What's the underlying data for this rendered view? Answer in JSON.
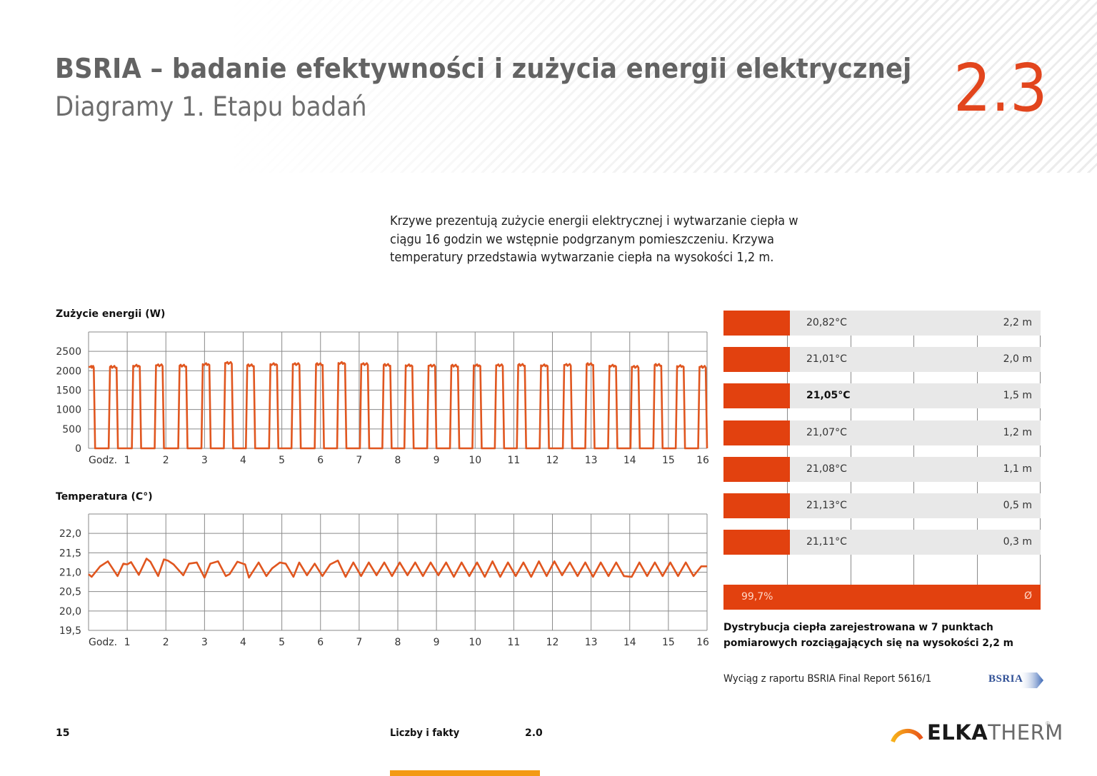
{
  "header": {
    "title": "BSRIA – badanie efektywności  i zużycia energii elektrycznej",
    "subtitle": "Diagramy 1. Etapu badań",
    "section_number": "2.3"
  },
  "intro_text": "Krzywe prezentują zużycie energii elektrycznej i wytwarzanie ciepła w ciągu 16 godzin we wstępnie podgrzanym pomieszczeniu. Krzywa temperatury przedstawia wytwarzanie ciepła na wysokości 1,2 m.",
  "colors": {
    "accent": "#e2451d",
    "line": "#e0561f",
    "bar": "#e2410f",
    "row_bg": "#e8e8e8",
    "grid": "#8a8a8a",
    "title_gray": "#636363",
    "footer_tab": "#f39a14"
  },
  "chart_data": [
    {
      "type": "line",
      "title": "Zużycie energii (W)",
      "xlabel": "Godz.",
      "ylabel": "W",
      "x_ticks": [
        "1",
        "2",
        "3",
        "4",
        "5",
        "6",
        "7",
        "8",
        "9",
        "10",
        "11",
        "12",
        "13",
        "14",
        "15",
        "16"
      ],
      "y_ticks": [
        "0",
        "500",
        "1000",
        "1500",
        "2000",
        "2500"
      ],
      "ylim": [
        0,
        3000
      ],
      "xlim": [
        0,
        16
      ],
      "grid": true,
      "description": "On/off heater cycling: ~31 rectangular pulses of ~2100–2200 W alternating with 0 W over 16 hours",
      "series": [
        {
          "name": "Zużycie energii",
          "pulses": [
            {
              "on": 0.0,
              "off": 0.17,
              "level": 2100
            },
            {
              "on": 0.52,
              "off": 0.76,
              "level": 2100
            },
            {
              "on": 1.12,
              "off": 1.36,
              "level": 2130
            },
            {
              "on": 1.71,
              "off": 1.95,
              "level": 2140
            },
            {
              "on": 2.32,
              "off": 2.56,
              "level": 2130
            },
            {
              "on": 2.92,
              "off": 3.16,
              "level": 2170
            },
            {
              "on": 3.5,
              "off": 3.74,
              "level": 2200
            },
            {
              "on": 4.07,
              "off": 4.31,
              "level": 2140
            },
            {
              "on": 4.67,
              "off": 4.91,
              "level": 2170
            },
            {
              "on": 5.25,
              "off": 5.49,
              "level": 2170
            },
            {
              "on": 5.85,
              "off": 6.09,
              "level": 2170
            },
            {
              "on": 6.43,
              "off": 6.67,
              "level": 2200
            },
            {
              "on": 7.02,
              "off": 7.26,
              "level": 2170
            },
            {
              "on": 7.6,
              "off": 7.84,
              "level": 2150
            },
            {
              "on": 8.17,
              "off": 8.41,
              "level": 2140
            },
            {
              "on": 8.76,
              "off": 9.0,
              "level": 2130
            },
            {
              "on": 9.35,
              "off": 9.59,
              "level": 2130
            },
            {
              "on": 9.93,
              "off": 10.17,
              "level": 2140
            },
            {
              "on": 10.51,
              "off": 10.75,
              "level": 2140
            },
            {
              "on": 11.08,
              "off": 11.32,
              "level": 2150
            },
            {
              "on": 11.67,
              "off": 11.91,
              "level": 2140
            },
            {
              "on": 12.27,
              "off": 12.51,
              "level": 2150
            },
            {
              "on": 12.85,
              "off": 13.09,
              "level": 2170
            },
            {
              "on": 13.44,
              "off": 13.68,
              "level": 2130
            },
            {
              "on": 14.02,
              "off": 14.26,
              "level": 2100
            },
            {
              "on": 14.61,
              "off": 14.85,
              "level": 2150
            },
            {
              "on": 15.19,
              "off": 15.43,
              "level": 2120
            },
            {
              "on": 15.77,
              "off": 16.0,
              "level": 2100
            }
          ]
        }
      ]
    },
    {
      "type": "line",
      "title": "Temperatura (C°)",
      "xlabel": "Godz.",
      "ylabel": "°C",
      "x_ticks": [
        "1",
        "2",
        "3",
        "4",
        "5",
        "6",
        "7",
        "8",
        "9",
        "10",
        "11",
        "12",
        "13",
        "14",
        "15",
        "16"
      ],
      "y_ticks": [
        "19,5",
        "20,0",
        "20,5",
        "21,0",
        "21,5",
        "22,0"
      ],
      "ylim": [
        19.5,
        22.5
      ],
      "xlim": [
        0,
        16
      ],
      "grid": true,
      "description": "Temperature oscillating around 21,0 °C between ~20,88 and ~21,33 °C with ~28 cycles",
      "series": [
        {
          "name": "Temperatura",
          "x": [
            0.0,
            0.08,
            0.3,
            0.5,
            0.75,
            0.9,
            1.0,
            1.1,
            1.3,
            1.5,
            1.6,
            1.8,
            1.95,
            2.05,
            2.2,
            2.45,
            2.6,
            2.8,
            3.0,
            3.15,
            3.35,
            3.55,
            3.65,
            3.85,
            4.05,
            4.15,
            4.4,
            4.6,
            4.75,
            4.95,
            5.1,
            5.3,
            5.45,
            5.65,
            5.85,
            6.05,
            6.25,
            6.45,
            6.65,
            6.85,
            7.05,
            7.25,
            7.45,
            7.65,
            7.85,
            8.05,
            8.25,
            8.45,
            8.65,
            8.85,
            9.05,
            9.25,
            9.45,
            9.65,
            9.85,
            10.05,
            10.25,
            10.45,
            10.65,
            10.85,
            11.05,
            11.25,
            11.45,
            11.65,
            11.85,
            12.05,
            12.25,
            12.45,
            12.65,
            12.85,
            13.05,
            13.25,
            13.45,
            13.65,
            13.85,
            14.05,
            14.25,
            14.45,
            14.65,
            14.85,
            15.05,
            15.25,
            15.45,
            15.65,
            15.85,
            16.0
          ],
          "y": [
            20.95,
            20.88,
            21.15,
            21.28,
            20.9,
            21.22,
            21.2,
            21.26,
            20.93,
            21.35,
            21.27,
            20.9,
            21.33,
            21.3,
            21.2,
            20.92,
            21.22,
            21.25,
            20.86,
            21.22,
            21.28,
            20.9,
            20.95,
            21.27,
            21.2,
            20.86,
            21.25,
            20.9,
            21.1,
            21.25,
            21.22,
            20.88,
            21.25,
            20.92,
            21.22,
            20.9,
            21.2,
            21.3,
            20.88,
            21.25,
            20.9,
            21.25,
            20.92,
            21.25,
            20.9,
            21.25,
            20.92,
            21.25,
            20.9,
            21.25,
            20.92,
            21.25,
            20.88,
            21.25,
            20.9,
            21.25,
            20.88,
            21.28,
            20.88,
            21.25,
            20.9,
            21.25,
            20.88,
            21.28,
            20.9,
            21.28,
            20.92,
            21.25,
            20.9,
            21.25,
            20.88,
            21.25,
            20.9,
            21.25,
            20.9,
            20.88,
            21.25,
            20.9,
            21.25,
            20.9,
            21.25,
            20.9,
            21.25,
            20.9,
            21.15,
            21.15
          ]
        }
      ]
    },
    {
      "type": "bar",
      "title": "Dystrybucja ciepła zarejestrowana w 7 punktach pomiarowych rozciągających się na wysokości 2,2 m",
      "orientation": "horizontal",
      "categories": [
        "2,2 m",
        "2,0 m",
        "1,5 m",
        "1,2 m",
        "1,1 m",
        "0,5 m",
        "0,3 m"
      ],
      "values": [
        20.82,
        21.01,
        21.05,
        21.07,
        21.08,
        21.13,
        21.11
      ],
      "unit": "°C",
      "summary": {
        "label": "99,7%",
        "symbol": "Ø"
      }
    }
  ],
  "energy_chart": {
    "title": "Zużycie energii (W)",
    "x_prefix": "Godz.",
    "x_ticks": [
      "1",
      "2",
      "3",
      "4",
      "5",
      "6",
      "7",
      "8",
      "9",
      "10",
      "11",
      "12",
      "13",
      "14",
      "15",
      "16"
    ],
    "y_ticks": [
      "0",
      "500",
      "1000",
      "1500",
      "2000",
      "2500"
    ]
  },
  "temp_chart": {
    "title": "Temperatura (C°)",
    "x_prefix": "Godz.",
    "x_ticks": [
      "1",
      "2",
      "3",
      "4",
      "5",
      "6",
      "7",
      "8",
      "9",
      "10",
      "11",
      "12",
      "13",
      "14",
      "15",
      "16"
    ],
    "y_ticks": [
      "19,5",
      "20,0",
      "20,5",
      "21,0",
      "21,5",
      "22,0"
    ]
  },
  "distribution": {
    "rows": [
      {
        "temp": "20,82°C",
        "height": "2,2 m",
        "bold": false
      },
      {
        "temp": "21,01°C",
        "height": "2,0 m",
        "bold": false
      },
      {
        "temp": "21,05°C",
        "height": "1,5 m",
        "bold": true
      },
      {
        "temp": "21,07°C",
        "height": "1,2 m",
        "bold": false
      },
      {
        "temp": "21,08°C",
        "height": "1,1 m",
        "bold": false
      },
      {
        "temp": "21,13°C",
        "height": "0,5 m",
        "bold": false
      },
      {
        "temp": "21,11°C",
        "height": "0,3 m",
        "bold": false
      }
    ],
    "total_pct": "99,7%",
    "total_symbol": "Ø",
    "caption": "Dystrybucja ciepła zarejestrowana w 7 punktach pomiarowych rozciągających się na wysokości 2,2 m",
    "source": "Wyciąg z raportu BSRIA Final Report 5616/1",
    "source_logo": "BSRIA"
  },
  "footer": {
    "page_number": "15",
    "section_label": "Liczby i fakty",
    "section_number": "2.0",
    "brand_bold": "ELKA",
    "brand_light": "THERM",
    "brand_reg": "®"
  }
}
